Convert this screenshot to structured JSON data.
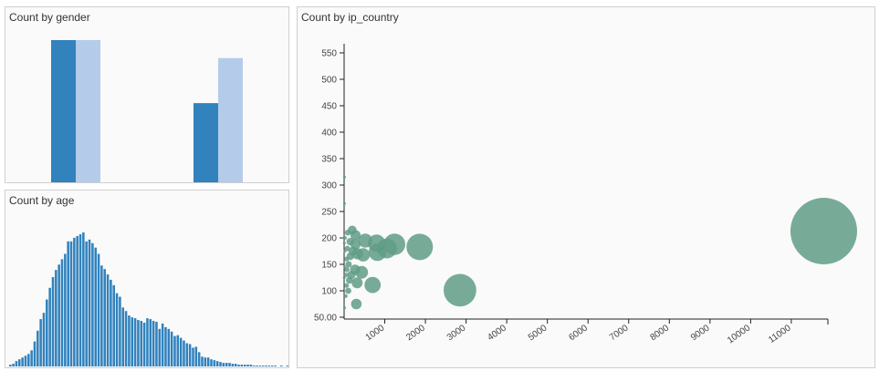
{
  "chart_data": [
    {
      "type": "bar",
      "title": "Count by gender",
      "categories": [
        "",
        ""
      ],
      "series": [
        {
          "values": [
            400,
            225
          ],
          "color": "#3182bd"
        },
        {
          "values": [
            400,
            350
          ],
          "color": "#b5cbea"
        }
      ],
      "ylim": [
        0,
        400
      ],
      "grid": false,
      "legend": "none"
    },
    {
      "type": "bar",
      "title": "Count by age",
      "values": [
        2,
        3,
        6,
        8,
        10,
        12,
        14,
        18,
        28,
        40,
        53,
        60,
        75,
        88,
        100,
        108,
        114,
        120,
        126,
        140,
        140,
        144,
        146,
        148,
        150,
        140,
        142,
        138,
        133,
        126,
        113,
        109,
        103,
        97,
        91,
        82,
        78,
        66,
        62,
        57,
        55,
        54,
        52,
        51,
        49,
        54,
        53,
        51,
        50,
        42,
        48,
        44,
        42,
        39,
        34,
        35,
        32,
        29,
        26,
        25,
        21,
        22,
        16,
        11,
        10,
        10,
        8,
        7,
        6,
        5,
        4,
        4,
        4,
        3,
        3,
        2,
        2,
        2,
        2,
        2,
        1,
        1,
        1,
        1,
        1,
        1,
        1,
        1,
        0,
        1,
        0,
        1
      ],
      "ylim": [
        0,
        150
      ],
      "grid": false,
      "legend": "none",
      "color": "#3182bd"
    },
    {
      "type": "scatter",
      "title": "Count by ip_country",
      "xlim": [
        0,
        11900
      ],
      "ylim": [
        50,
        575
      ],
      "xticks": [
        "1000",
        "2000",
        "3000",
        "4000",
        "5000",
        "6000",
        "7000",
        "8000",
        "9000",
        "10000",
        "11000"
      ],
      "xtick_values": [
        1000,
        2000,
        3000,
        4000,
        5000,
        6000,
        7000,
        8000,
        9000,
        10000,
        11000
      ],
      "yticks": [
        "50.00",
        "100",
        "150",
        "200",
        "250",
        "300",
        "350",
        "400",
        "450",
        "500",
        "550"
      ],
      "ytick_values": [
        50,
        100,
        150,
        200,
        250,
        300,
        350,
        400,
        450,
        500,
        550
      ],
      "grid": false,
      "legend": "none",
      "color": "#5f9c86",
      "points": [
        {
          "x": 11800,
          "y": 213,
          "size": 11800
        },
        {
          "x": 1860,
          "y": 183,
          "size": 1860
        },
        {
          "x": 2850,
          "y": 101,
          "size": 2850
        },
        {
          "x": 1240,
          "y": 188,
          "size": 1240
        },
        {
          "x": 800,
          "y": 190,
          "size": 800
        },
        {
          "x": 1050,
          "y": 180,
          "size": 1050
        },
        {
          "x": 820,
          "y": 173,
          "size": 820
        },
        {
          "x": 520,
          "y": 195,
          "size": 520
        },
        {
          "x": 470,
          "y": 168,
          "size": 470
        },
        {
          "x": 280,
          "y": 188,
          "size": 280
        },
        {
          "x": 330,
          "y": 170,
          "size": 330
        },
        {
          "x": 430,
          "y": 135,
          "size": 430
        },
        {
          "x": 700,
          "y": 111,
          "size": 700
        },
        {
          "x": 270,
          "y": 140,
          "size": 270
        },
        {
          "x": 280,
          "y": 205,
          "size": 280
        },
        {
          "x": 200,
          "y": 215,
          "size": 200
        },
        {
          "x": 220,
          "y": 175,
          "size": 220
        },
        {
          "x": 150,
          "y": 193,
          "size": 150
        },
        {
          "x": 150,
          "y": 165,
          "size": 150
        },
        {
          "x": 180,
          "y": 130,
          "size": 180
        },
        {
          "x": 320,
          "y": 115,
          "size": 320
        },
        {
          "x": 110,
          "y": 150,
          "size": 110
        },
        {
          "x": 130,
          "y": 120,
          "size": 130
        },
        {
          "x": 90,
          "y": 210,
          "size": 90
        },
        {
          "x": 100,
          "y": 100,
          "size": 100
        },
        {
          "x": 300,
          "y": 75,
          "size": 300
        },
        {
          "x": 80,
          "y": 180,
          "size": 80
        },
        {
          "x": 60,
          "y": 160,
          "size": 60
        },
        {
          "x": 70,
          "y": 140,
          "size": 70
        },
        {
          "x": 50,
          "y": 130,
          "size": 50
        },
        {
          "x": 60,
          "y": 110,
          "size": 60
        },
        {
          "x": 40,
          "y": 90,
          "size": 40
        },
        {
          "x": 30,
          "y": 200,
          "size": 30
        },
        {
          "x": 20,
          "y": 175,
          "size": 20
        },
        {
          "x": 15,
          "y": 145,
          "size": 15
        },
        {
          "x": 10,
          "y": 265,
          "size": 10
        },
        {
          "x": 10,
          "y": 315,
          "size": 10
        },
        {
          "x": 8,
          "y": 68,
          "size": 8
        },
        {
          "x": 5,
          "y": 125,
          "size": 5
        },
        {
          "x": 5,
          "y": 190,
          "size": 5
        }
      ]
    }
  ]
}
